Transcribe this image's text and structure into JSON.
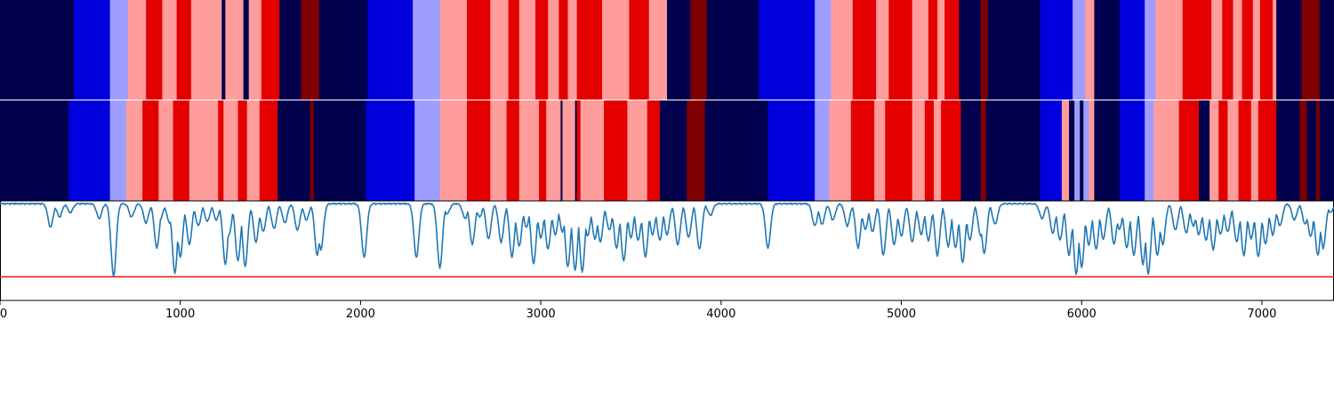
{
  "chart_data": [
    {
      "type": "heatmap",
      "name": "upper-segmentation-track",
      "title": "",
      "xlim": [
        0,
        7400
      ],
      "palette": {
        "0": "#00004c",
        "1": "#0000dd",
        "2": "#9e9eff",
        "3": "#ff9c9c",
        "4": "#e50000",
        "5": "#7f0000"
      },
      "segments": [
        [
          0,
          410,
          0
        ],
        [
          410,
          610,
          1
        ],
        [
          610,
          710,
          2
        ],
        [
          710,
          810,
          3
        ],
        [
          810,
          900,
          4
        ],
        [
          900,
          980,
          3
        ],
        [
          980,
          1060,
          4
        ],
        [
          1060,
          1230,
          3
        ],
        [
          1230,
          1250,
          0
        ],
        [
          1250,
          1350,
          3
        ],
        [
          1350,
          1380,
          0
        ],
        [
          1380,
          1450,
          3
        ],
        [
          1450,
          1550,
          4
        ],
        [
          1550,
          1670,
          0
        ],
        [
          1670,
          1770,
          5
        ],
        [
          1770,
          2040,
          0
        ],
        [
          2040,
          2290,
          1
        ],
        [
          2290,
          2440,
          2
        ],
        [
          2440,
          2590,
          3
        ],
        [
          2590,
          2720,
          4
        ],
        [
          2720,
          2820,
          3
        ],
        [
          2820,
          2880,
          4
        ],
        [
          2880,
          2970,
          3
        ],
        [
          2970,
          3040,
          4
        ],
        [
          3040,
          3100,
          3
        ],
        [
          3100,
          3150,
          4
        ],
        [
          3150,
          3200,
          3
        ],
        [
          3200,
          3340,
          4
        ],
        [
          3340,
          3490,
          3
        ],
        [
          3490,
          3600,
          4
        ],
        [
          3600,
          3700,
          3
        ],
        [
          3700,
          3830,
          0
        ],
        [
          3830,
          3920,
          5
        ],
        [
          3920,
          4210,
          0
        ],
        [
          4210,
          4520,
          1
        ],
        [
          4520,
          4610,
          2
        ],
        [
          4610,
          4730,
          3
        ],
        [
          4730,
          4860,
          4
        ],
        [
          4860,
          4930,
          3
        ],
        [
          4930,
          5060,
          4
        ],
        [
          5060,
          5150,
          3
        ],
        [
          5150,
          5200,
          4
        ],
        [
          5200,
          5240,
          3
        ],
        [
          5240,
          5320,
          4
        ],
        [
          5320,
          5440,
          0
        ],
        [
          5440,
          5480,
          5
        ],
        [
          5480,
          5770,
          0
        ],
        [
          5770,
          5950,
          1
        ],
        [
          5950,
          6020,
          2
        ],
        [
          6020,
          6070,
          3
        ],
        [
          6070,
          6210,
          0
        ],
        [
          6210,
          6350,
          1
        ],
        [
          6350,
          6410,
          2
        ],
        [
          6410,
          6560,
          3
        ],
        [
          6560,
          6720,
          4
        ],
        [
          6720,
          6780,
          3
        ],
        [
          6780,
          6840,
          4
        ],
        [
          6840,
          6890,
          3
        ],
        [
          6890,
          6950,
          4
        ],
        [
          6950,
          6990,
          3
        ],
        [
          6990,
          7060,
          4
        ],
        [
          7060,
          7080,
          3
        ],
        [
          7080,
          7220,
          0
        ],
        [
          7220,
          7320,
          5
        ],
        [
          7320,
          7400,
          0
        ]
      ]
    },
    {
      "type": "heatmap",
      "name": "lower-segmentation-track",
      "title": "",
      "xlim": [
        0,
        7400
      ],
      "segments": [
        [
          0,
          380,
          0
        ],
        [
          380,
          610,
          1
        ],
        [
          610,
          700,
          2
        ],
        [
          700,
          790,
          3
        ],
        [
          790,
          880,
          4
        ],
        [
          880,
          960,
          3
        ],
        [
          960,
          1050,
          4
        ],
        [
          1050,
          1210,
          3
        ],
        [
          1210,
          1240,
          4
        ],
        [
          1240,
          1320,
          3
        ],
        [
          1320,
          1370,
          4
        ],
        [
          1370,
          1440,
          3
        ],
        [
          1440,
          1540,
          4
        ],
        [
          1540,
          1720,
          0
        ],
        [
          1720,
          1740,
          5
        ],
        [
          1740,
          2030,
          0
        ],
        [
          2030,
          2300,
          1
        ],
        [
          2300,
          2440,
          2
        ],
        [
          2440,
          2590,
          3
        ],
        [
          2590,
          2720,
          4
        ],
        [
          2720,
          2810,
          3
        ],
        [
          2810,
          2880,
          4
        ],
        [
          2880,
          2990,
          3
        ],
        [
          2990,
          3030,
          4
        ],
        [
          3030,
          3110,
          3
        ],
        [
          3110,
          3120,
          0
        ],
        [
          3120,
          3190,
          3
        ],
        [
          3190,
          3200,
          0
        ],
        [
          3200,
          3220,
          4
        ],
        [
          3220,
          3350,
          3
        ],
        [
          3350,
          3480,
          4
        ],
        [
          3480,
          3590,
          3
        ],
        [
          3590,
          3660,
          4
        ],
        [
          3660,
          3810,
          0
        ],
        [
          3810,
          3910,
          5
        ],
        [
          3910,
          4260,
          0
        ],
        [
          4260,
          4520,
          1
        ],
        [
          4520,
          4600,
          2
        ],
        [
          4600,
          4720,
          3
        ],
        [
          4720,
          4850,
          4
        ],
        [
          4850,
          4910,
          3
        ],
        [
          4910,
          5060,
          4
        ],
        [
          5060,
          5130,
          3
        ],
        [
          5130,
          5180,
          4
        ],
        [
          5180,
          5220,
          3
        ],
        [
          5220,
          5330,
          4
        ],
        [
          5330,
          5440,
          0
        ],
        [
          5440,
          5470,
          5
        ],
        [
          5470,
          5770,
          0
        ],
        [
          5770,
          5890,
          1
        ],
        [
          5890,
          5930,
          3
        ],
        [
          5930,
          5960,
          0
        ],
        [
          5960,
          5990,
          2
        ],
        [
          5990,
          6010,
          0
        ],
        [
          6010,
          6040,
          2
        ],
        [
          6040,
          6070,
          3
        ],
        [
          6070,
          6210,
          0
        ],
        [
          6210,
          6350,
          1
        ],
        [
          6350,
          6400,
          2
        ],
        [
          6400,
          6540,
          3
        ],
        [
          6540,
          6650,
          4
        ],
        [
          6650,
          6710,
          0
        ],
        [
          6710,
          6760,
          3
        ],
        [
          6760,
          6810,
          4
        ],
        [
          6810,
          6870,
          3
        ],
        [
          6870,
          6940,
          4
        ],
        [
          6940,
          6980,
          3
        ],
        [
          6980,
          7080,
          4
        ],
        [
          7080,
          7210,
          0
        ],
        [
          7210,
          7250,
          5
        ],
        [
          7250,
          7300,
          0
        ],
        [
          7300,
          7320,
          5
        ],
        [
          7320,
          7400,
          0
        ]
      ]
    },
    {
      "type": "line",
      "name": "signal-line-panel",
      "title": "",
      "xlabel": "",
      "ylabel": "",
      "xlim": [
        0,
        7400
      ],
      "ylim": [
        -1.32,
        0.03
      ],
      "threshold": -1.0,
      "x_ticks": [
        0,
        1000,
        2000,
        3000,
        4000,
        5000,
        6000,
        7000
      ],
      "x_tick_labels": [
        "0",
        "1000",
        "2000",
        "3000",
        "4000",
        "5000",
        "6000",
        "7000"
      ],
      "series": [
        {
          "name": "signal",
          "color": "#1f77b4",
          "baseline": 0,
          "background_noise": 0.02,
          "dips": [
            [
              280,
              -0.32
            ],
            [
              330,
              -0.18
            ],
            [
              390,
              -0.12
            ],
            [
              550,
              -0.2
            ],
            [
              630,
              -0.99
            ],
            [
              730,
              -0.18
            ],
            [
              810,
              -0.26
            ],
            [
              870,
              -0.6
            ],
            [
              890,
              -0.2
            ],
            [
              940,
              -0.26
            ],
            [
              970,
              -0.94
            ],
            [
              1000,
              -0.72
            ],
            [
              1050,
              -0.55
            ],
            [
              1100,
              -0.3
            ],
            [
              1150,
              -0.24
            ],
            [
              1200,
              -0.22
            ],
            [
              1250,
              -0.82
            ],
            [
              1270,
              -0.42
            ],
            [
              1320,
              -0.78
            ],
            [
              1360,
              -0.85
            ],
            [
              1420,
              -0.52
            ],
            [
              1460,
              -0.38
            ],
            [
              1520,
              -0.34
            ],
            [
              1580,
              -0.26
            ],
            [
              1650,
              -0.36
            ],
            [
              1700,
              -0.22
            ],
            [
              1760,
              -0.7
            ],
            [
              1780,
              -0.62
            ],
            [
              2020,
              -0.73
            ],
            [
              2300,
              -0.13
            ],
            [
              2310,
              -0.73
            ],
            [
              2440,
              -0.87
            ],
            [
              2480,
              -0.14
            ],
            [
              2580,
              -0.2
            ],
            [
              2620,
              -0.55
            ],
            [
              2660,
              -0.18
            ],
            [
              2710,
              -0.48
            ],
            [
              2780,
              -0.52
            ],
            [
              2840,
              -0.72
            ],
            [
              2880,
              -0.58
            ],
            [
              2920,
              -0.32
            ],
            [
              2960,
              -0.82
            ],
            [
              3000,
              -0.46
            ],
            [
              3040,
              -0.62
            ],
            [
              3080,
              -0.42
            ],
            [
              3120,
              -0.38
            ],
            [
              3150,
              -0.86
            ],
            [
              3190,
              -0.9
            ],
            [
              3230,
              -0.92
            ],
            [
              3260,
              -0.44
            ],
            [
              3300,
              -0.48
            ],
            [
              3330,
              -0.52
            ],
            [
              3380,
              -0.36
            ],
            [
              3420,
              -0.6
            ],
            [
              3460,
              -0.78
            ],
            [
              3500,
              -0.46
            ],
            [
              3540,
              -0.5
            ],
            [
              3580,
              -0.72
            ],
            [
              3620,
              -0.42
            ],
            [
              3660,
              -0.5
            ],
            [
              3700,
              -0.42
            ],
            [
              3760,
              -0.56
            ],
            [
              3820,
              -0.46
            ],
            [
              3880,
              -0.62
            ],
            [
              3940,
              -0.16
            ],
            [
              4260,
              -0.6
            ],
            [
              4520,
              -0.3
            ],
            [
              4560,
              -0.28
            ],
            [
              4620,
              -0.22
            ],
            [
              4700,
              -0.3
            ],
            [
              4760,
              -0.6
            ],
            [
              4800,
              -0.35
            ],
            [
              4840,
              -0.38
            ],
            [
              4900,
              -0.7
            ],
            [
              4960,
              -0.56
            ],
            [
              5000,
              -0.44
            ],
            [
              5060,
              -0.52
            ],
            [
              5110,
              -0.42
            ],
            [
              5150,
              -0.5
            ],
            [
              5200,
              -0.7
            ],
            [
              5260,
              -0.58
            ],
            [
              5300,
              -0.6
            ],
            [
              5340,
              -0.8
            ],
            [
              5380,
              -0.5
            ],
            [
              5440,
              -0.44
            ],
            [
              5460,
              -0.68
            ],
            [
              5520,
              -0.28
            ],
            [
              5780,
              -0.2
            ],
            [
              5840,
              -0.4
            ],
            [
              5880,
              -0.5
            ],
            [
              5930,
              -0.7
            ],
            [
              5970,
              -0.96
            ],
            [
              6000,
              -0.86
            ],
            [
              6040,
              -0.56
            ],
            [
              6080,
              -0.62
            ],
            [
              6120,
              -0.48
            ],
            [
              6180,
              -0.55
            ],
            [
              6210,
              -0.35
            ],
            [
              6250,
              -0.6
            ],
            [
              6290,
              -0.7
            ],
            [
              6340,
              -0.82
            ],
            [
              6370,
              -0.95
            ],
            [
              6420,
              -0.7
            ],
            [
              6450,
              -0.55
            ],
            [
              6520,
              -0.36
            ],
            [
              6580,
              -0.4
            ],
            [
              6620,
              -0.3
            ],
            [
              6650,
              -0.42
            ],
            [
              6690,
              -0.5
            ],
            [
              6730,
              -0.62
            ],
            [
              6770,
              -0.42
            ],
            [
              6810,
              -0.38
            ],
            [
              6860,
              -0.52
            ],
            [
              6900,
              -0.7
            ],
            [
              6940,
              -0.48
            ],
            [
              6980,
              -0.72
            ],
            [
              7020,
              -0.55
            ],
            [
              7060,
              -0.42
            ],
            [
              7100,
              -0.3
            ],
            [
              7180,
              -0.22
            ],
            [
              7240,
              -0.28
            ],
            [
              7270,
              -0.45
            ],
            [
              7310,
              -0.7
            ],
            [
              7340,
              -0.6
            ],
            [
              7380,
              -0.12
            ]
          ]
        }
      ]
    }
  ]
}
